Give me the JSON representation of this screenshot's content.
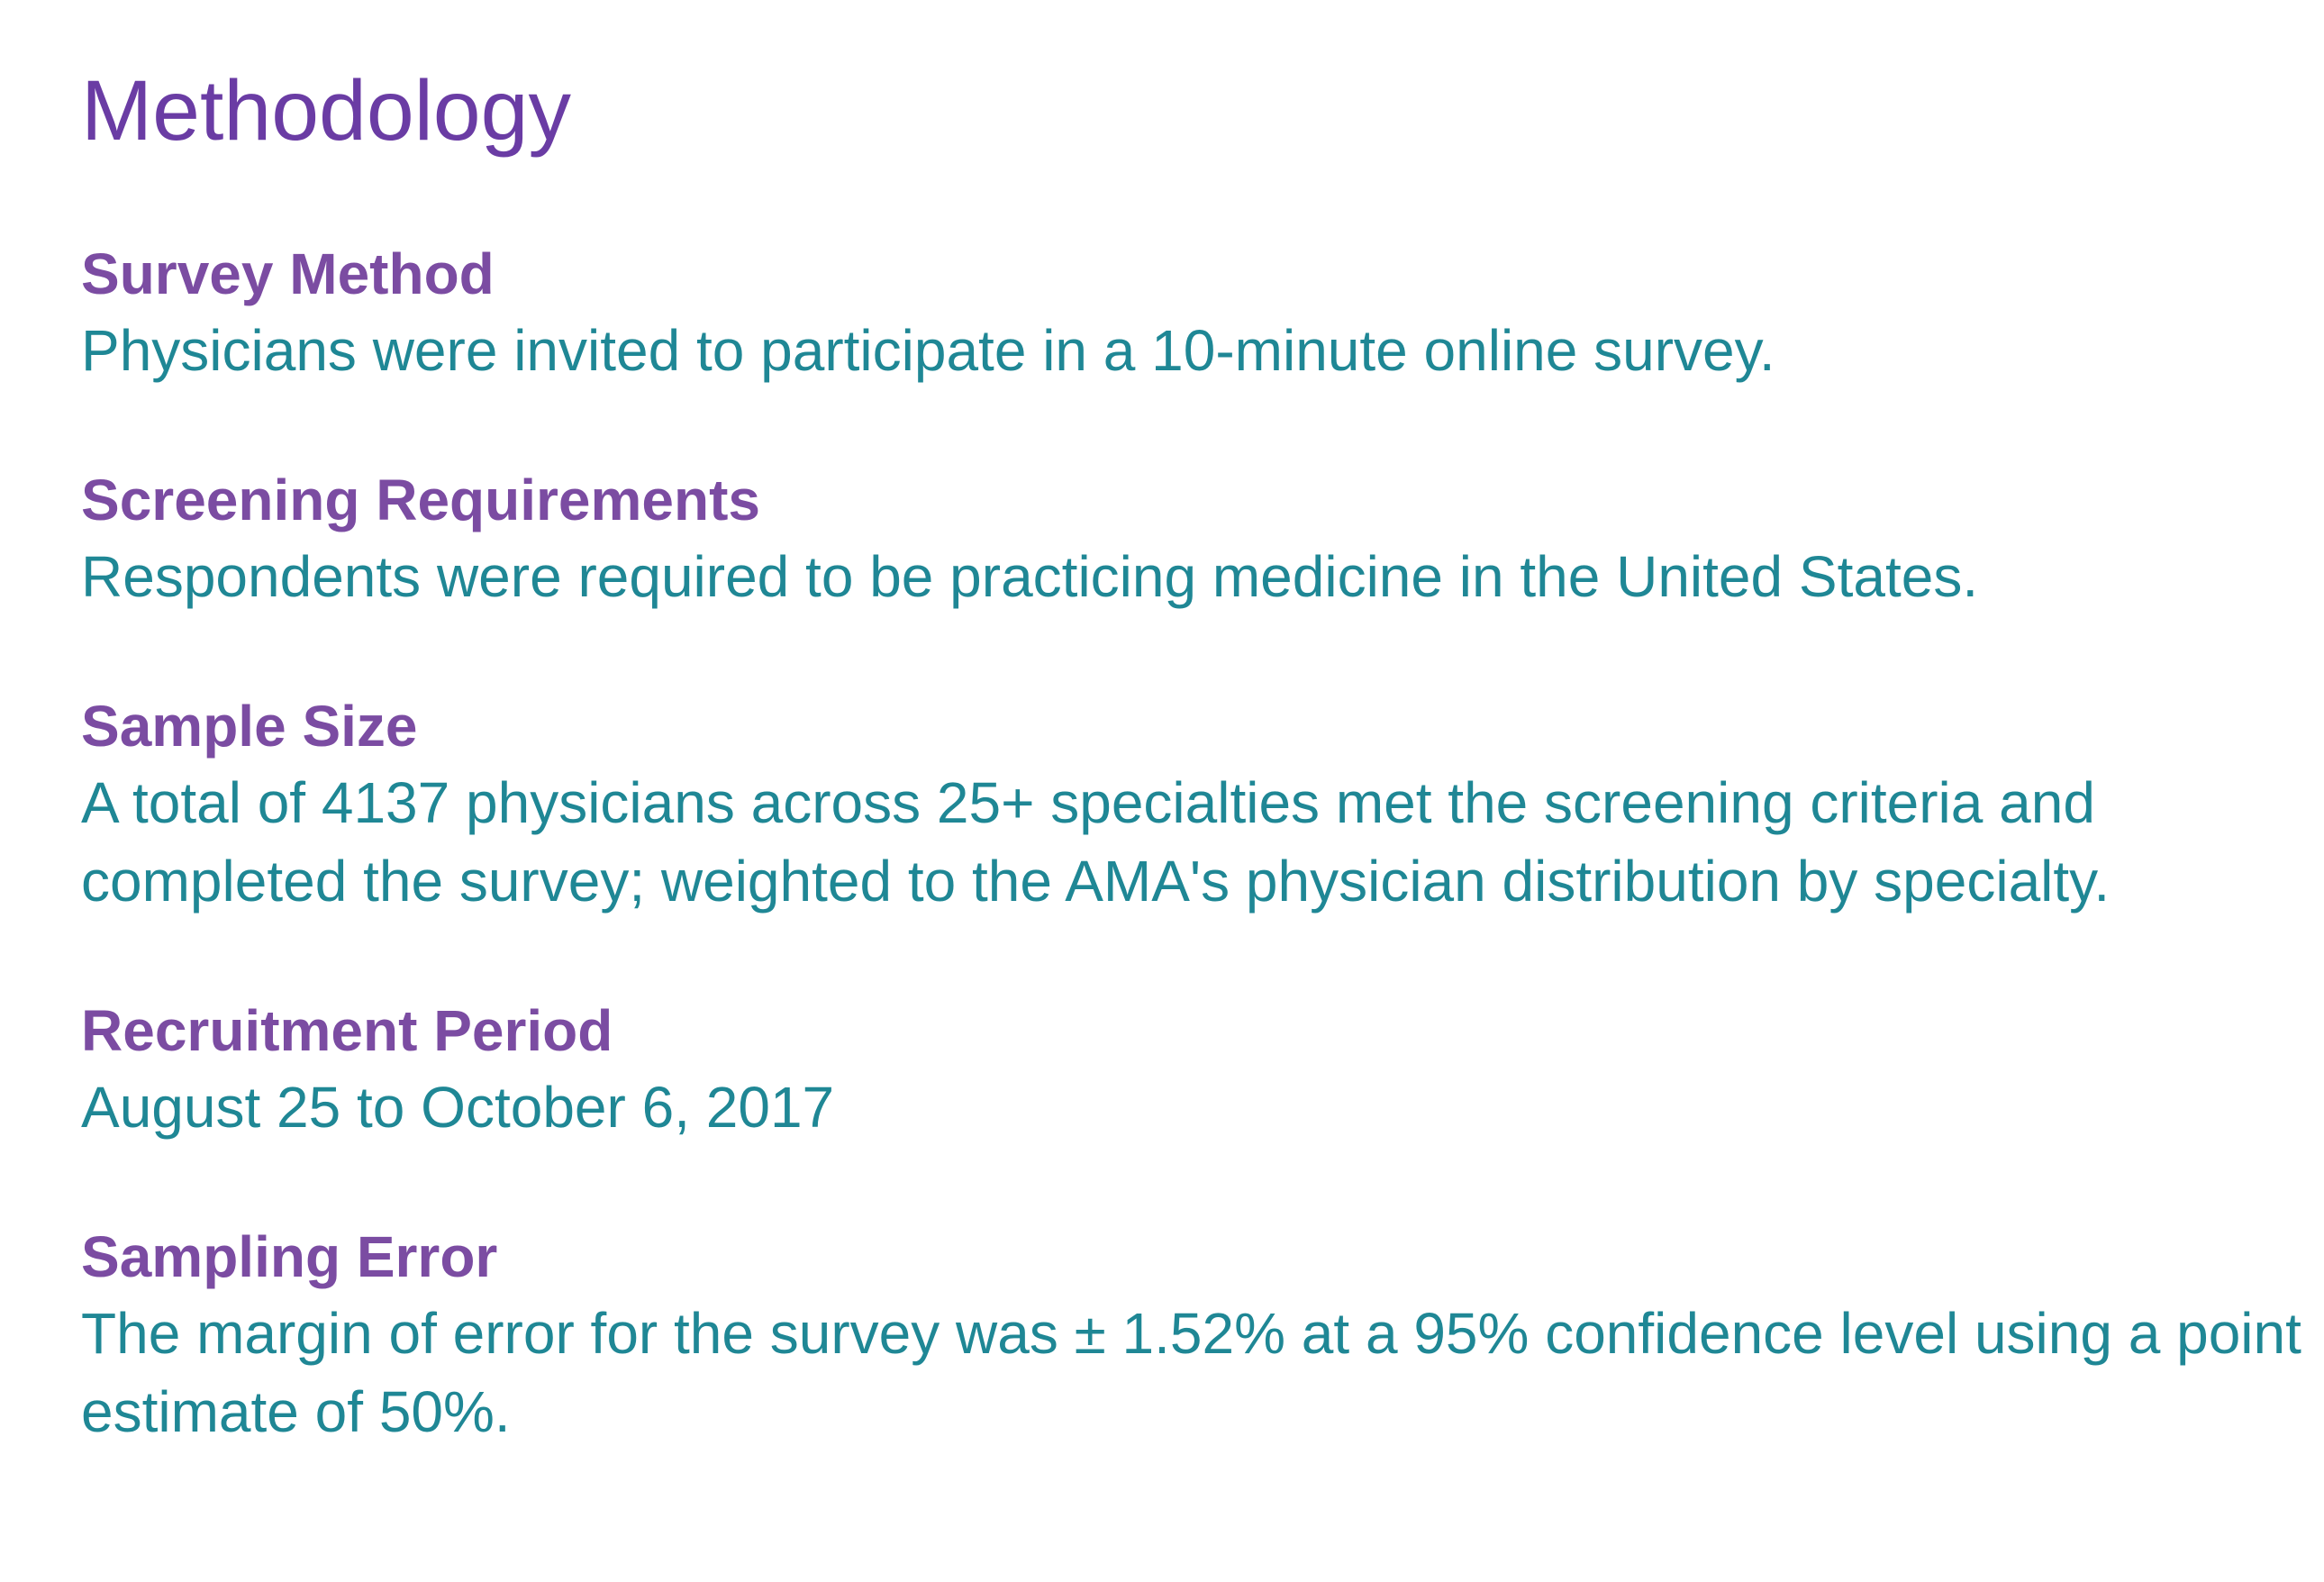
{
  "page": {
    "title": "Methodology",
    "colors": {
      "title_purple": "#6a3ca4",
      "heading_purple": "#7b4ca2",
      "body_teal": "#1f8795",
      "background": "#ffffff"
    },
    "sections": [
      {
        "heading": "Survey Method",
        "lines": [
          "Physicians were invited to participate in a 10-minute online survey."
        ]
      },
      {
        "heading": "Screening Requirements",
        "lines": [
          "Respondents were required to be practicing medicine in the United States."
        ]
      },
      {
        "heading": "Sample Size",
        "lines": [
          "A total of 4137 physicians across 25+ specialties met the screening criteria and",
          "completed the survey; weighted to the AMA's physician distribution by specialty."
        ]
      },
      {
        "heading": "Recruitment Period",
        "lines": [
          "August 25 to October 6, 2017"
        ]
      },
      {
        "heading": "Sampling Error",
        "lines": [
          "The margin of error for the survey was ± 1.52% at a 95% confidence level using a point",
          "estimate of 50%."
        ]
      }
    ]
  }
}
